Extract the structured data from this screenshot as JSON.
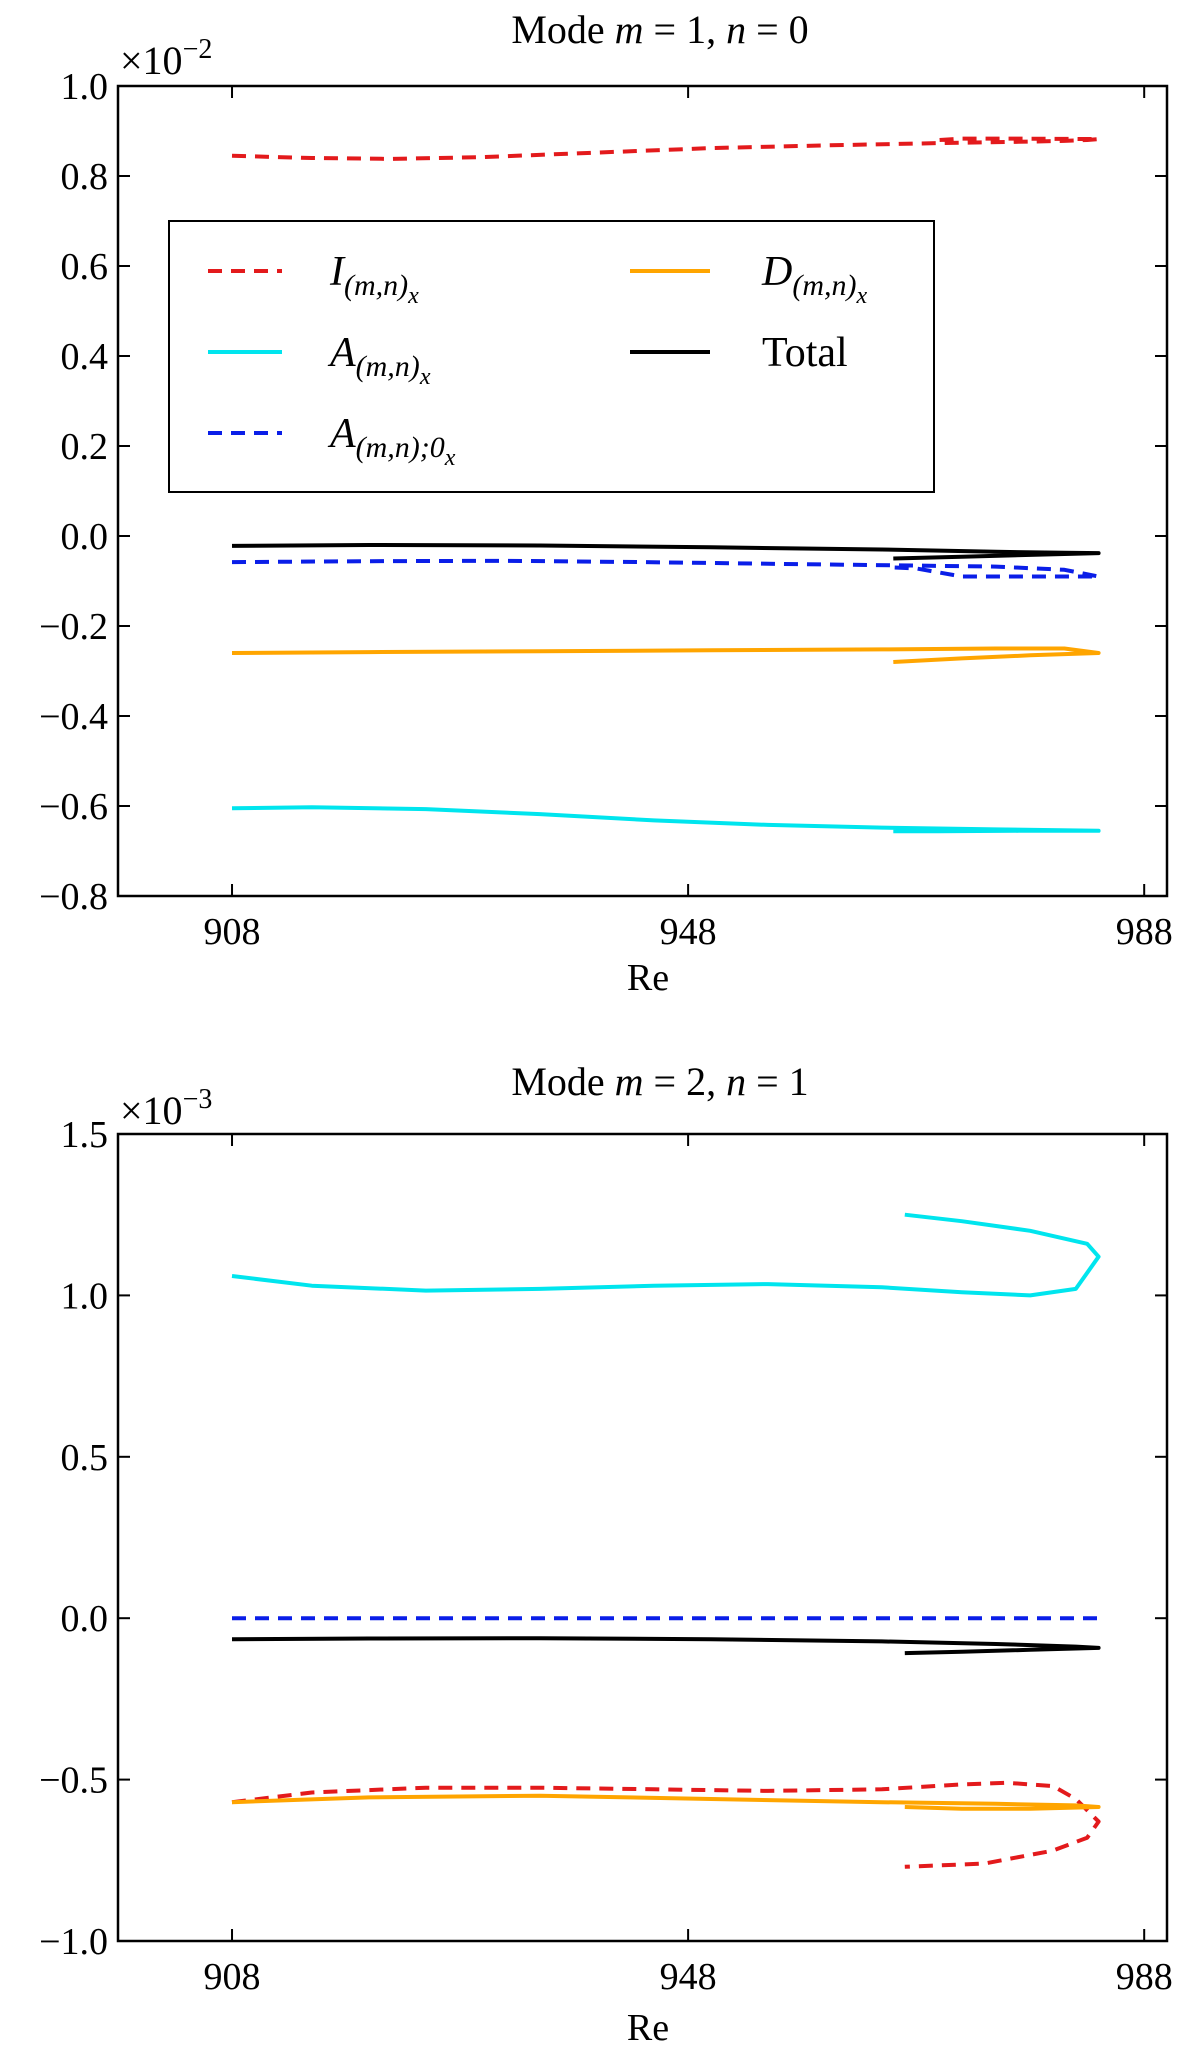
{
  "chart_data": [
    {
      "type": "line",
      "title": "Mode m = 1, n = 0",
      "title_parts": {
        "prefix": "Mode ",
        "m": "m",
        "eq1": " = 1, ",
        "n": "n",
        "eq2": " = 0"
      },
      "xlabel": "Re",
      "ylabel": "",
      "xlim": [
        898,
        990
      ],
      "ylim": [
        -0.8,
        1.0
      ],
      "xticks": [
        908,
        948,
        988
      ],
      "xtick_labels": [
        "908",
        "948",
        "988"
      ],
      "yticks": [
        -0.8,
        -0.6,
        -0.4,
        -0.2,
        0.0,
        0.2,
        0.4,
        0.6,
        0.8,
        1.0
      ],
      "ytick_labels": [
        "−0.8",
        "−0.6",
        "−0.4",
        "−0.2",
        "0.0",
        "0.2",
        "0.4",
        "0.6",
        "0.8",
        "1.0"
      ],
      "multiplier": {
        "base": "×10",
        "exp": "−2"
      },
      "grid": false,
      "legend": {
        "placement": "upper-left",
        "columns": 2
      },
      "series": [
        {
          "key": "I",
          "color": "#e31a1c",
          "dash": true,
          "x": [
            908,
            915,
            922,
            930,
            940,
            950,
            960,
            970,
            977,
            981,
            983,
            984,
            976,
            972,
            970
          ],
          "y": [
            0.845,
            0.84,
            0.838,
            0.842,
            0.852,
            0.862,
            0.868,
            0.873,
            0.876,
            0.878,
            0.88,
            0.882,
            0.883,
            0.883,
            0.88
          ]
        },
        {
          "key": "A",
          "color": "#00e5ee",
          "dash": false,
          "x": [
            908,
            915,
            925,
            935,
            945,
            955,
            965,
            975,
            984,
            977,
            970,
            966
          ],
          "y": [
            -0.605,
            -0.603,
            -0.607,
            -0.618,
            -0.632,
            -0.642,
            -0.648,
            -0.652,
            -0.655,
            -0.655,
            -0.656,
            -0.656
          ]
        },
        {
          "key": "A0",
          "color": "#0a1ee8",
          "dash": true,
          "x": [
            908,
            920,
            932,
            944,
            956,
            966,
            975,
            981,
            984,
            978,
            972,
            968,
            966
          ],
          "y": [
            -0.058,
            -0.056,
            -0.055,
            -0.058,
            -0.062,
            -0.065,
            -0.068,
            -0.075,
            -0.09,
            -0.09,
            -0.09,
            -0.072,
            -0.07
          ]
        },
        {
          "key": "D",
          "color": "#ffa500",
          "dash": false,
          "x": [
            908,
            920,
            935,
            950,
            965,
            975,
            981,
            984,
            978,
            972,
            966
          ],
          "y": [
            -0.26,
            -0.258,
            -0.256,
            -0.254,
            -0.252,
            -0.25,
            -0.25,
            -0.26,
            -0.265,
            -0.272,
            -0.28
          ]
        },
        {
          "key": "T",
          "color": "#000000",
          "dash": false,
          "x": [
            908,
            920,
            935,
            950,
            965,
            975,
            981,
            984,
            978,
            972,
            966
          ],
          "y": [
            -0.022,
            -0.02,
            -0.021,
            -0.025,
            -0.03,
            -0.035,
            -0.037,
            -0.038,
            -0.042,
            -0.046,
            -0.05
          ]
        }
      ]
    },
    {
      "type": "line",
      "title": "Mode m = 2, n = 1",
      "title_parts": {
        "prefix": "Mode ",
        "m": "m",
        "eq1": " = 2, ",
        "n": "n",
        "eq2": " = 1"
      },
      "xlabel": "Re",
      "ylabel": "",
      "xlim": [
        898,
        990
      ],
      "ylim": [
        -1.0,
        1.5
      ],
      "xticks": [
        908,
        948,
        988
      ],
      "xtick_labels": [
        "908",
        "948",
        "988"
      ],
      "yticks": [
        -1.0,
        -0.5,
        0.0,
        0.5,
        1.0,
        1.5
      ],
      "ytick_labels": [
        "−1.0",
        "−0.5",
        "0.0",
        "0.5",
        "1.0",
        "1.5"
      ],
      "multiplier": {
        "base": "×10",
        "exp": "−3"
      },
      "grid": false,
      "series": [
        {
          "key": "I",
          "color": "#e31a1c",
          "dash": true,
          "x": [
            908,
            915,
            925,
            935,
            945,
            955,
            965,
            972,
            976,
            980,
            982,
            984,
            983,
            980,
            974,
            967
          ],
          "y": [
            -0.57,
            -0.54,
            -0.525,
            -0.525,
            -0.53,
            -0.535,
            -0.53,
            -0.515,
            -0.51,
            -0.52,
            -0.56,
            -0.63,
            -0.68,
            -0.72,
            -0.76,
            -0.77
          ]
        },
        {
          "key": "A",
          "color": "#00e5ee",
          "dash": false,
          "x": [
            908,
            915,
            925,
            935,
            945,
            955,
            965,
            972,
            978,
            982,
            984,
            983,
            978,
            972,
            967
          ],
          "y": [
            1.06,
            1.03,
            1.015,
            1.02,
            1.03,
            1.035,
            1.025,
            1.01,
            1.0,
            1.02,
            1.12,
            1.16,
            1.2,
            1.23,
            1.25
          ]
        },
        {
          "key": "A0",
          "color": "#0a1ee8",
          "dash": true,
          "x": [
            908,
            984
          ],
          "y": [
            0.0,
            0.0
          ]
        },
        {
          "key": "D",
          "color": "#ffa500",
          "dash": false,
          "x": [
            908,
            920,
            935,
            950,
            965,
            975,
            982,
            984,
            978,
            972,
            967
          ],
          "y": [
            -0.57,
            -0.555,
            -0.55,
            -0.56,
            -0.57,
            -0.575,
            -0.58,
            -0.585,
            -0.59,
            -0.59,
            -0.585
          ]
        },
        {
          "key": "T",
          "color": "#000000",
          "dash": false,
          "x": [
            908,
            920,
            935,
            950,
            965,
            975,
            982,
            984,
            978,
            972,
            967
          ],
          "y": [
            -0.065,
            -0.063,
            -0.062,
            -0.065,
            -0.072,
            -0.08,
            -0.088,
            -0.092,
            -0.098,
            -0.104,
            -0.108
          ]
        }
      ]
    }
  ],
  "legend_entries": [
    {
      "key": "I",
      "main": "I",
      "sub": "(m,n)",
      "subsub": "x",
      "color": "#e31a1c",
      "dash": true
    },
    {
      "key": "A",
      "main": "A",
      "sub": "(m,n)",
      "subsub": "x",
      "color": "#00e5ee",
      "dash": false
    },
    {
      "key": "A0",
      "main": "A",
      "sub": "(m,n);0",
      "subsub": "x",
      "color": "#0a1ee8",
      "dash": true
    },
    {
      "key": "D",
      "main": "D",
      "sub": "(m,n)",
      "subsub": "x",
      "color": "#ffa500",
      "dash": false
    },
    {
      "key": "T",
      "main": "Total",
      "sub": "",
      "subsub": "",
      "color": "#000000",
      "dash": false
    }
  ]
}
